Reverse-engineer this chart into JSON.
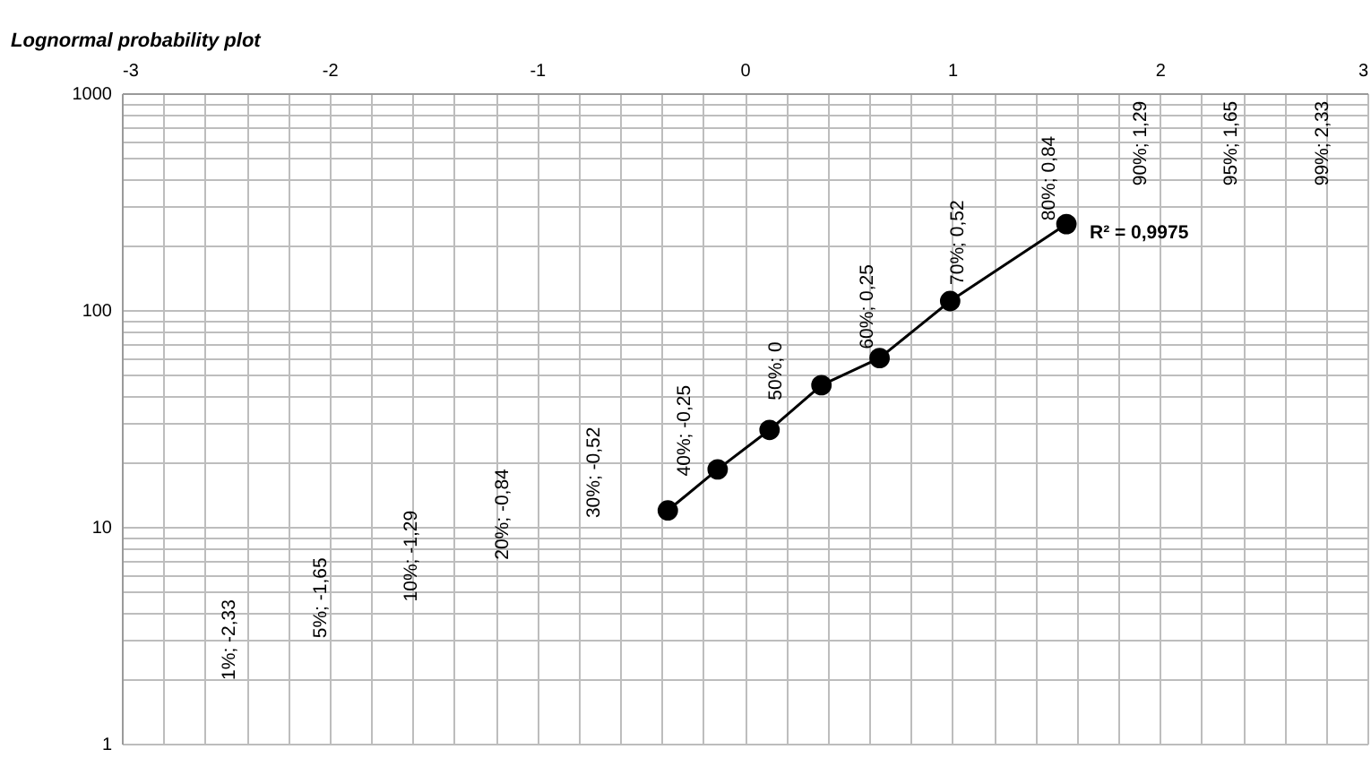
{
  "chart_data": {
    "type": "line",
    "title": "Lognormal probability plot",
    "x": [
      -0.37,
      -0.13,
      0.12,
      0.37,
      0.65,
      0.99,
      1.55
    ],
    "series": [
      {
        "color": "#000000",
        "values": [
          11.9,
          18.4,
          28,
          45,
          60,
          110,
          249
        ]
      }
    ],
    "log": "y",
    "xlim": [
      -3,
      3
    ],
    "xticks": [
      -3,
      -2,
      -1,
      0,
      1,
      2,
      3
    ],
    "ylim": [
      1,
      1000
    ],
    "yticks": [
      1,
      10,
      100,
      1000
    ],
    "grid": true,
    "marker": "circle",
    "line_style": "solid",
    "annotations": [
      "1%; -2,33",
      "5%; -1,65",
      "10%; -1,29",
      "20%; -0,84",
      "30%; -0,52",
      "40%; -0,25",
      "50%; 0",
      "60%; 0,25",
      "70%; 0,52",
      "80%; 0,84",
      "90%; 1,29",
      "95%; 1,65",
      "99%; 2,33",
      "R² = 0,9975"
    ]
  }
}
